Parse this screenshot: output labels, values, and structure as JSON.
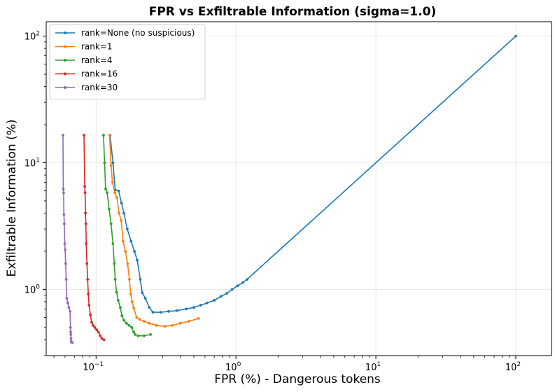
{
  "chart_data": {
    "type": "line",
    "title": "FPR vs Exfiltrable Information (sigma=1.0)",
    "xlabel": "FPR (%) - Dangerous tokens",
    "ylabel": "Exfiltrable Information (%)",
    "xscale": "log",
    "yscale": "log",
    "xlim": [
      0.044,
      180
    ],
    "ylim": [
      0.3,
      130
    ],
    "x_ticks": [
      {
        "base": "10",
        "exp": "−1",
        "value": 0.1
      },
      {
        "base": "10",
        "exp": "0",
        "value": 1
      },
      {
        "base": "10",
        "exp": "1",
        "value": 10
      },
      {
        "base": "10",
        "exp": "2",
        "value": 100
      }
    ],
    "y_ticks": [
      {
        "base": "10",
        "exp": "0",
        "value": 1
      },
      {
        "base": "10",
        "exp": "1",
        "value": 10
      },
      {
        "base": "10",
        "exp": "2",
        "value": 100
      }
    ],
    "grid": true,
    "legend_position": "top-left",
    "series": [
      {
        "name": "rank=None (no suspicious)",
        "color": "#1f77b4",
        "points": [
          [
            0.126,
            16.5
          ],
          [
            0.132,
            10.0
          ],
          [
            0.137,
            6.1
          ],
          [
            0.145,
            6.0
          ],
          [
            0.152,
            4.8
          ],
          [
            0.158,
            4.0
          ],
          [
            0.167,
            3.0
          ],
          [
            0.178,
            2.4
          ],
          [
            0.188,
            2.0
          ],
          [
            0.197,
            1.7
          ],
          [
            0.207,
            1.2
          ],
          [
            0.214,
            0.94
          ],
          [
            0.225,
            0.85
          ],
          [
            0.24,
            0.72
          ],
          [
            0.255,
            0.66
          ],
          [
            0.29,
            0.66
          ],
          [
            0.33,
            0.67
          ],
          [
            0.38,
            0.68
          ],
          [
            0.44,
            0.7
          ],
          [
            0.5,
            0.72
          ],
          [
            0.56,
            0.75
          ],
          [
            0.62,
            0.78
          ],
          [
            0.7,
            0.82
          ],
          [
            0.78,
            0.88
          ],
          [
            0.86,
            0.93
          ],
          [
            0.94,
            1.0
          ],
          [
            1.03,
            1.07
          ],
          [
            1.12,
            1.13
          ],
          [
            1.2,
            1.2
          ],
          [
            100,
            100
          ]
        ]
      },
      {
        "name": "rank=1",
        "color": "#ff7f0e",
        "points": [
          [
            0.125,
            16.5
          ],
          [
            0.128,
            9.5
          ],
          [
            0.131,
            7.0
          ],
          [
            0.136,
            5.8
          ],
          [
            0.141,
            5.3
          ],
          [
            0.146,
            4.0
          ],
          [
            0.151,
            3.5
          ],
          [
            0.156,
            2.4
          ],
          [
            0.162,
            2.0
          ],
          [
            0.168,
            1.6
          ],
          [
            0.173,
            1.2
          ],
          [
            0.177,
            0.92
          ],
          [
            0.181,
            0.8
          ],
          [
            0.186,
            0.71
          ],
          [
            0.195,
            0.6
          ],
          [
            0.205,
            0.58
          ],
          [
            0.22,
            0.56
          ],
          [
            0.24,
            0.54
          ],
          [
            0.27,
            0.52
          ],
          [
            0.31,
            0.51
          ],
          [
            0.35,
            0.52
          ],
          [
            0.4,
            0.54
          ],
          [
            0.46,
            0.56
          ],
          [
            0.54,
            0.59
          ]
        ]
      },
      {
        "name": "rank=4",
        "color": "#2ca02c",
        "points": [
          [
            0.113,
            16.5
          ],
          [
            0.115,
            10.0
          ],
          [
            0.117,
            6.2
          ],
          [
            0.12,
            5.8
          ],
          [
            0.124,
            4.3
          ],
          [
            0.128,
            3.3
          ],
          [
            0.132,
            2.3
          ],
          [
            0.135,
            1.6
          ],
          [
            0.137,
            1.2
          ],
          [
            0.14,
            0.95
          ],
          [
            0.144,
            0.82
          ],
          [
            0.149,
            0.72
          ],
          [
            0.153,
            0.62
          ],
          [
            0.158,
            0.57
          ],
          [
            0.165,
            0.54
          ],
          [
            0.172,
            0.52
          ],
          [
            0.18,
            0.5
          ],
          [
            0.186,
            0.46
          ],
          [
            0.19,
            0.44
          ],
          [
            0.2,
            0.43
          ],
          [
            0.22,
            0.43
          ],
          [
            0.245,
            0.44
          ]
        ]
      },
      {
        "name": "rank=16",
        "color": "#d62728",
        "points": [
          [
            0.082,
            16.5
          ],
          [
            0.083,
            6.5
          ],
          [
            0.0835,
            5.8
          ],
          [
            0.084,
            4.0
          ],
          [
            0.0845,
            3.3
          ],
          [
            0.085,
            2.3
          ],
          [
            0.086,
            1.6
          ],
          [
            0.087,
            1.2
          ],
          [
            0.088,
            0.92
          ],
          [
            0.089,
            0.75
          ],
          [
            0.091,
            0.63
          ],
          [
            0.093,
            0.55
          ],
          [
            0.095,
            0.52
          ],
          [
            0.098,
            0.5
          ],
          [
            0.101,
            0.48
          ],
          [
            0.104,
            0.46
          ],
          [
            0.107,
            0.43
          ],
          [
            0.11,
            0.41
          ],
          [
            0.114,
            0.4
          ]
        ]
      },
      {
        "name": "rank=30",
        "color": "#9467bd",
        "points": [
          [
            0.058,
            16.5
          ],
          [
            0.0583,
            6.2
          ],
          [
            0.0586,
            5.8
          ],
          [
            0.0589,
            3.9
          ],
          [
            0.0593,
            3.3
          ],
          [
            0.0597,
            2.3
          ],
          [
            0.0601,
            2.05
          ],
          [
            0.0606,
            1.6
          ],
          [
            0.0612,
            1.2
          ],
          [
            0.0618,
            0.85
          ],
          [
            0.0628,
            0.78
          ],
          [
            0.064,
            0.72
          ],
          [
            0.0652,
            0.67
          ],
          [
            0.0656,
            0.5
          ],
          [
            0.0658,
            0.46
          ],
          [
            0.066,
            0.44
          ],
          [
            0.0662,
            0.41
          ],
          [
            0.0664,
            0.39
          ],
          [
            0.067,
            0.38
          ],
          [
            0.0677,
            0.38
          ]
        ]
      }
    ]
  }
}
